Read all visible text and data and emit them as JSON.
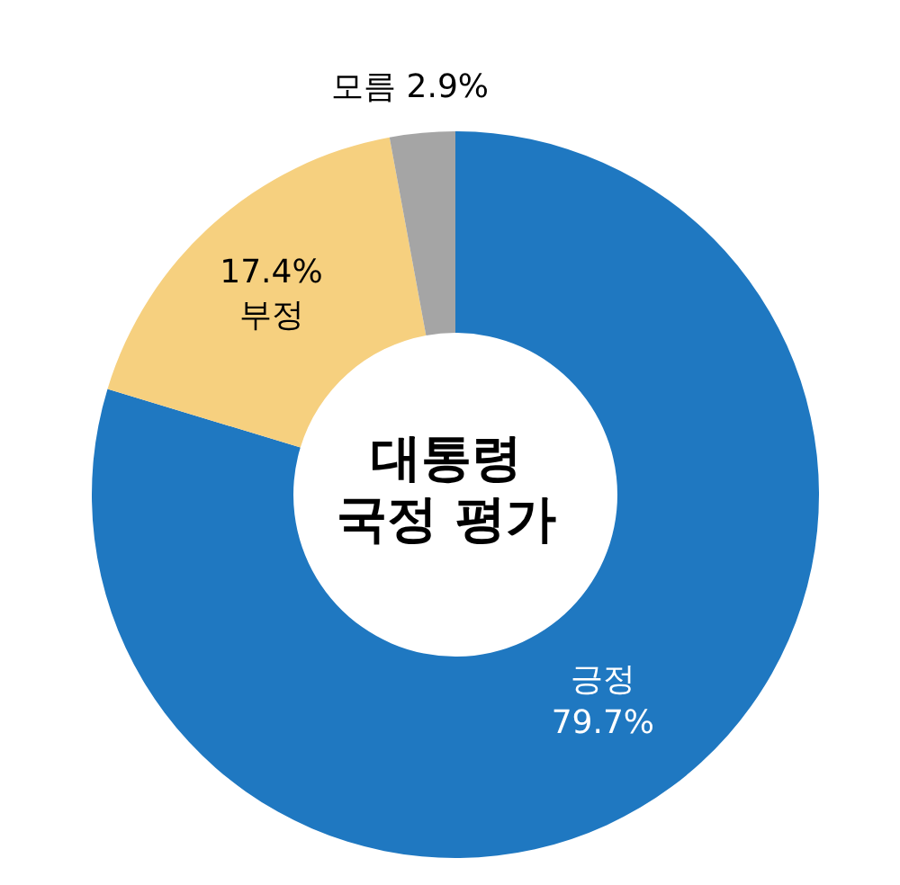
{
  "chart_data": {
    "type": "donut",
    "title": "대통령 국정 평가",
    "categories": [
      "긍정",
      "부정",
      "모름"
    ],
    "values": [
      79.7,
      17.4,
      2.9
    ],
    "colors": [
      "#1f78c1",
      "#f6d07f",
      "#a5a5a5"
    ],
    "value_labels": [
      "79.7%",
      "17.4%",
      "2.9%"
    ],
    "legend": false
  }
}
